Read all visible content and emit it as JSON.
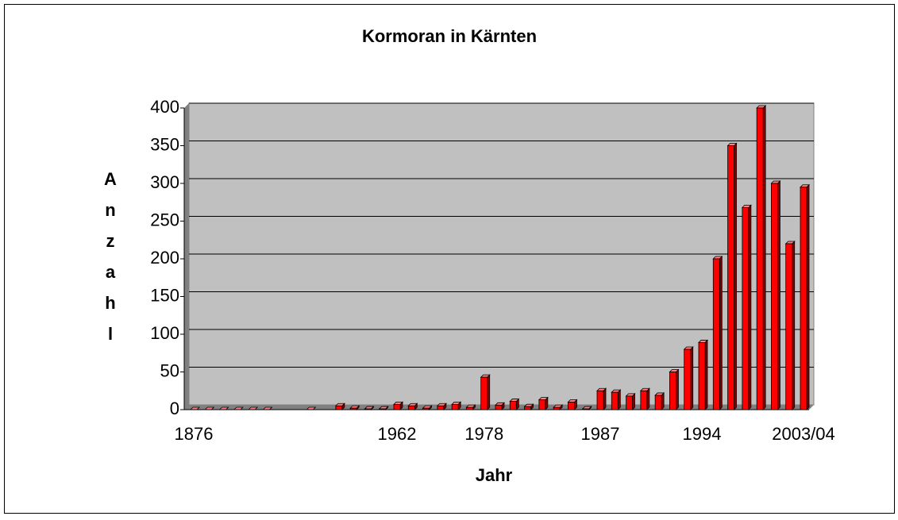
{
  "chart_data": {
    "type": "bar",
    "title": "Kormoran in Kärnten",
    "x_label": "Jahr",
    "y_label": "Anzahl",
    "categories": [
      "1876",
      null,
      null,
      null,
      null,
      null,
      null,
      null,
      null,
      null,
      null,
      null,
      null,
      null,
      "1962",
      null,
      null,
      null,
      null,
      null,
      "1978",
      null,
      null,
      null,
      null,
      null,
      null,
      null,
      "1987",
      null,
      null,
      null,
      null,
      null,
      null,
      "1994",
      null,
      null,
      null,
      null,
      null,
      null,
      "2003/04"
    ],
    "values": [
      0,
      0,
      0,
      0,
      0,
      0,
      null,
      null,
      0,
      null,
      5,
      2,
      1,
      1,
      7,
      5,
      2,
      5,
      7,
      3,
      43,
      6,
      11,
      4,
      13,
      3,
      10,
      1,
      25,
      23,
      18,
      25,
      19,
      50,
      80,
      89,
      200,
      350,
      268,
      400,
      300,
      220,
      295
    ],
    "color": "#ff0000",
    "ylim": [
      0,
      400
    ],
    "yticks": [
      0,
      50,
      100,
      150,
      200,
      250,
      300,
      350,
      400
    ],
    "grid": true
  }
}
